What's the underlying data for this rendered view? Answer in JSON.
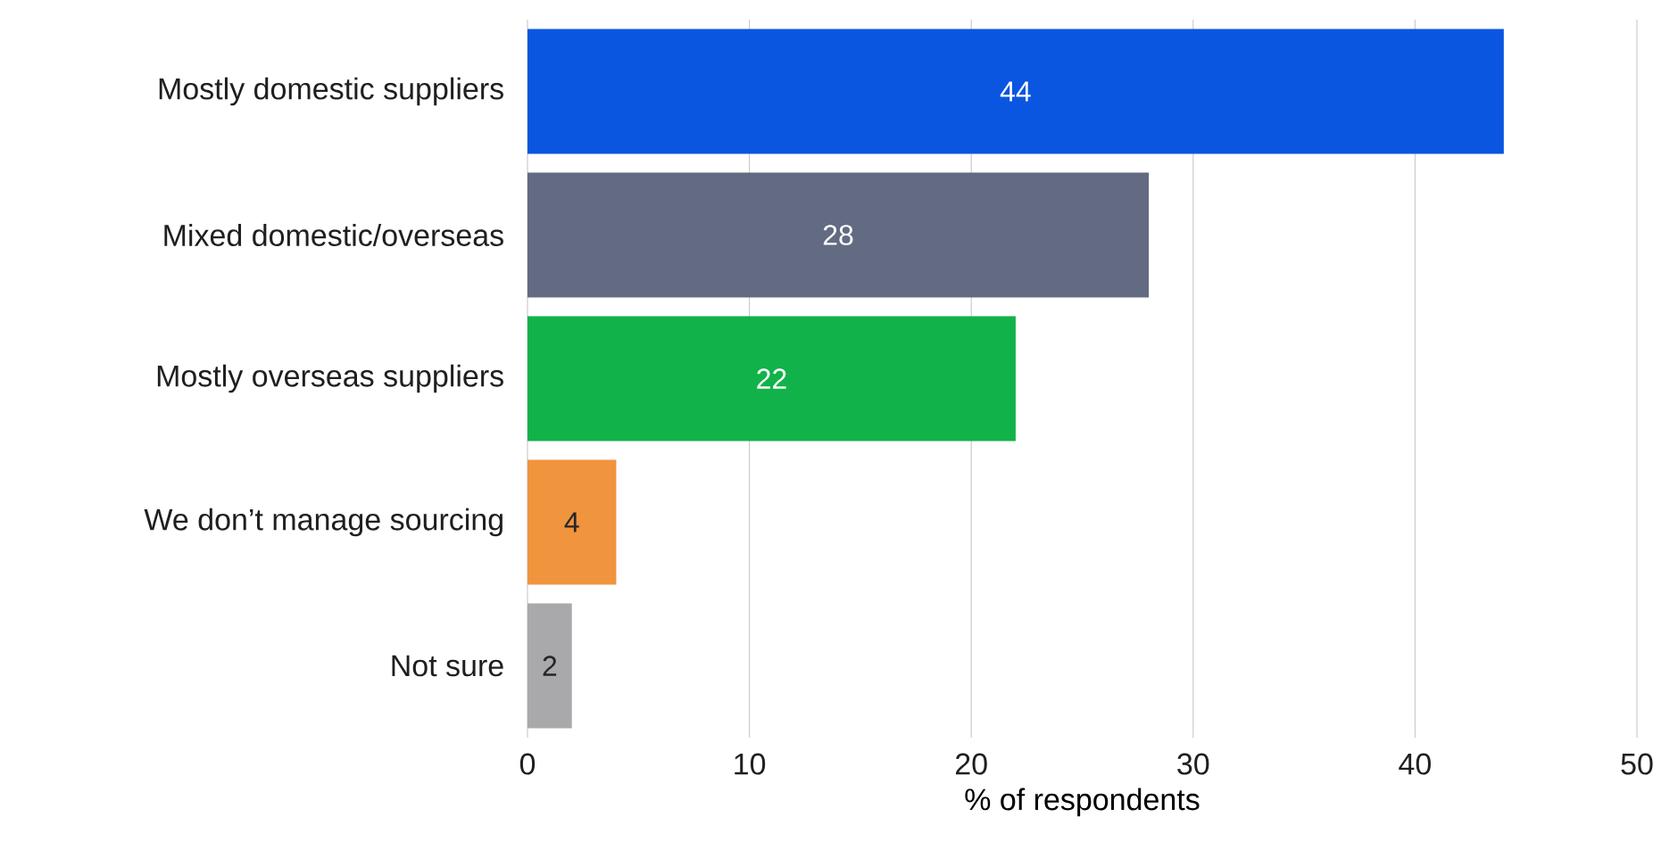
{
  "chart_data": {
    "type": "bar",
    "orientation": "horizontal",
    "xlabel": "% of respondents",
    "categories": [
      "Mostly domestic suppliers",
      "Mixed domestic/overseas",
      "Mostly overseas suppliers",
      "We don’t manage sourcing",
      "Not sure"
    ],
    "values": [
      44,
      28,
      22,
      4,
      2
    ],
    "colors": [
      "#0a56e0",
      "#636b82",
      "#12b24a",
      "#f0943e",
      "#a9a9ab"
    ],
    "xlim": [
      0,
      50
    ],
    "xticks": [
      0,
      10,
      20,
      30,
      40,
      50
    ],
    "grid": "x",
    "data_labels": true
  }
}
